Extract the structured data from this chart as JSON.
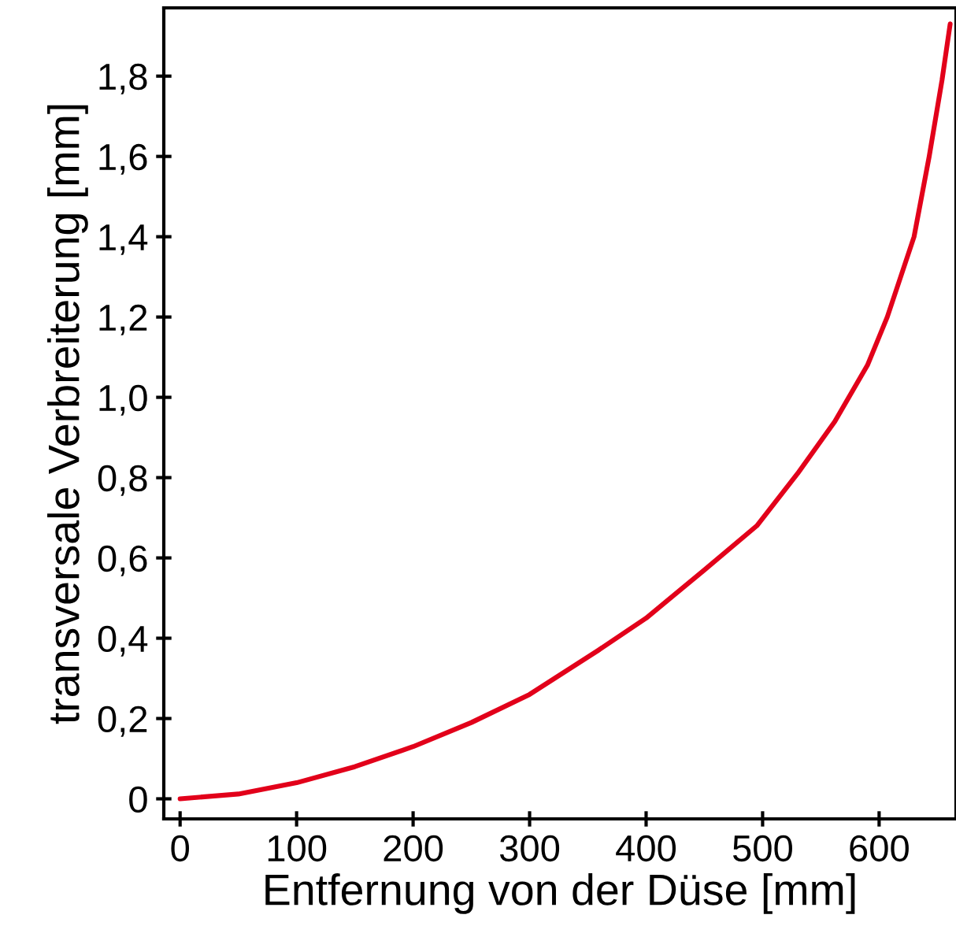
{
  "chart_data": {
    "type": "line",
    "xlabel": "Entfernung von der Düse [mm]",
    "ylabel": "transversale Verbreiterung [mm]",
    "xlim": [
      -14,
      666
    ],
    "ylim": [
      -0.05,
      1.97
    ],
    "xticks": [
      0,
      100,
      200,
      300,
      400,
      500,
      600
    ],
    "yticks": [
      {
        "value": 0,
        "label": "0"
      },
      {
        "value": 0.2,
        "label": "0,2"
      },
      {
        "value": 0.4,
        "label": "0,4"
      },
      {
        "value": 0.6,
        "label": "0,6"
      },
      {
        "value": 0.8,
        "label": "0,8"
      },
      {
        "value": 1.0,
        "label": "1,0"
      },
      {
        "value": 1.2,
        "label": "1,2"
      },
      {
        "value": 1.4,
        "label": "1,4"
      },
      {
        "value": 1.6,
        "label": "1,6"
      },
      {
        "value": 1.8,
        "label": "1,8"
      }
    ],
    "grid": false,
    "marker": "none",
    "line_style": "solid",
    "series": [
      {
        "color": "#e2001a",
        "x": [
          0,
          50,
          100,
          150,
          200,
          250,
          300,
          359,
          400,
          450,
          495,
          530,
          562,
          590,
          607,
          630,
          643,
          654,
          661
        ],
        "values": [
          0,
          0.012,
          0.04,
          0.08,
          0.13,
          0.19,
          0.26,
          0.37,
          0.45,
          0.57,
          0.68,
          0.81,
          0.94,
          1.08,
          1.2,
          1.4,
          1.6,
          1.79,
          1.93
        ]
      }
    ]
  }
}
